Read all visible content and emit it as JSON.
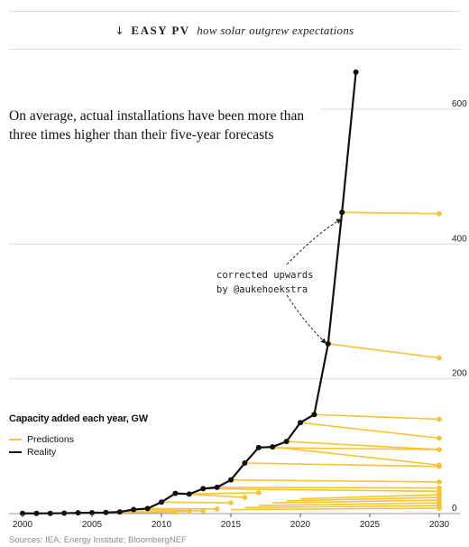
{
  "header": {
    "arrow": "↓",
    "brand": "EASY PV",
    "tagline": "how solar outgrew expectations"
  },
  "headline": "On average, actual installations have been more than three times higher than their five-year forecasts",
  "annotation": {
    "line1": "corrected upwards",
    "line2": "by @aukehoekstra"
  },
  "legend": {
    "title": "Capacity added each year, GW",
    "items": [
      {
        "label": "Predictions",
        "color": "#f6c433"
      },
      {
        "label": "Reality",
        "color": "#111111"
      }
    ]
  },
  "source": "Sources: IEA; Energy Institute; BloombergNEF",
  "chart_data": {
    "type": "line",
    "xlim": [
      2000,
      2030
    ],
    "ylim": [
      0,
      650
    ],
    "x_ticks": [
      2000,
      2005,
      2010,
      2015,
      2020,
      2025,
      2030
    ],
    "y_ticks": [
      0,
      200,
      400,
      600
    ],
    "grid": "horizontal",
    "colors": {
      "reality": "#111111",
      "predictions": "#f6c433",
      "grid": "#d9d9d9"
    },
    "reality": {
      "x": [
        2000,
        2001,
        2002,
        2003,
        2004,
        2005,
        2006,
        2007,
        2008,
        2009,
        2010,
        2011,
        2012,
        2013,
        2014,
        2015,
        2016,
        2017,
        2018,
        2019,
        2020,
        2021,
        2022,
        2023,
        2024
      ],
      "y": [
        0.3,
        0.3,
        0.4,
        0.6,
        1.1,
        1.4,
        1.6,
        2.5,
        6,
        7.5,
        17,
        30,
        29,
        37,
        39,
        50,
        75,
        98,
        99,
        107,
        135,
        147,
        252,
        447,
        655
      ]
    },
    "predictions": [
      {
        "x": [
          2006,
          2011
        ],
        "y": [
          1.6,
          2
        ]
      },
      {
        "x": [
          2007,
          2012
        ],
        "y": [
          2.5,
          3
        ]
      },
      {
        "x": [
          2008,
          2013
        ],
        "y": [
          6,
          4
        ]
      },
      {
        "x": [
          2009,
          2014
        ],
        "y": [
          7.5,
          7
        ]
      },
      {
        "x": [
          2010,
          2015
        ],
        "y": [
          17,
          16
        ]
      },
      {
        "x": [
          2011,
          2016
        ],
        "y": [
          30,
          24
        ]
      },
      {
        "x": [
          2012,
          2017
        ],
        "y": [
          29,
          31
        ]
      },
      {
        "x": [
          2013,
          2030
        ],
        "y": [
          37,
          33
        ]
      },
      {
        "x": [
          2014,
          2030
        ],
        "y": [
          39,
          38
        ]
      },
      {
        "x": [
          2015,
          2030
        ],
        "y": [
          50,
          47
        ]
      },
      {
        "x": [
          2016,
          2030
        ],
        "y": [
          75,
          70
        ]
      },
      {
        "x": [
          2017,
          2030
        ],
        "y": [
          98,
          95
        ]
      },
      {
        "x": [
          2018,
          2030
        ],
        "y": [
          99,
          72
        ]
      },
      {
        "x": [
          2019,
          2030
        ],
        "y": [
          107,
          95
        ]
      },
      {
        "x": [
          2020,
          2030
        ],
        "y": [
          135,
          112
        ]
      },
      {
        "x": [
          2021,
          2030
        ],
        "y": [
          147,
          140
        ]
      },
      {
        "x": [
          2022,
          2030
        ],
        "y": [
          252,
          231
        ]
      },
      {
        "x": [
          2023,
          2030
        ],
        "y": [
          447,
          445
        ]
      },
      {
        "x": [
          2020,
          2030
        ],
        "y": [
          22,
          28
        ]
      },
      {
        "x": [
          2019,
          2030
        ],
        "y": [
          19,
          24
        ]
      },
      {
        "x": [
          2018,
          2030
        ],
        "y": [
          16,
          20
        ]
      },
      {
        "x": [
          2017,
          2030
        ],
        "y": [
          12,
          16
        ]
      },
      {
        "x": [
          2016,
          2030
        ],
        "y": [
          9,
          12
        ]
      },
      {
        "x": [
          2015,
          2030
        ],
        "y": [
          6,
          8
        ]
      }
    ]
  }
}
